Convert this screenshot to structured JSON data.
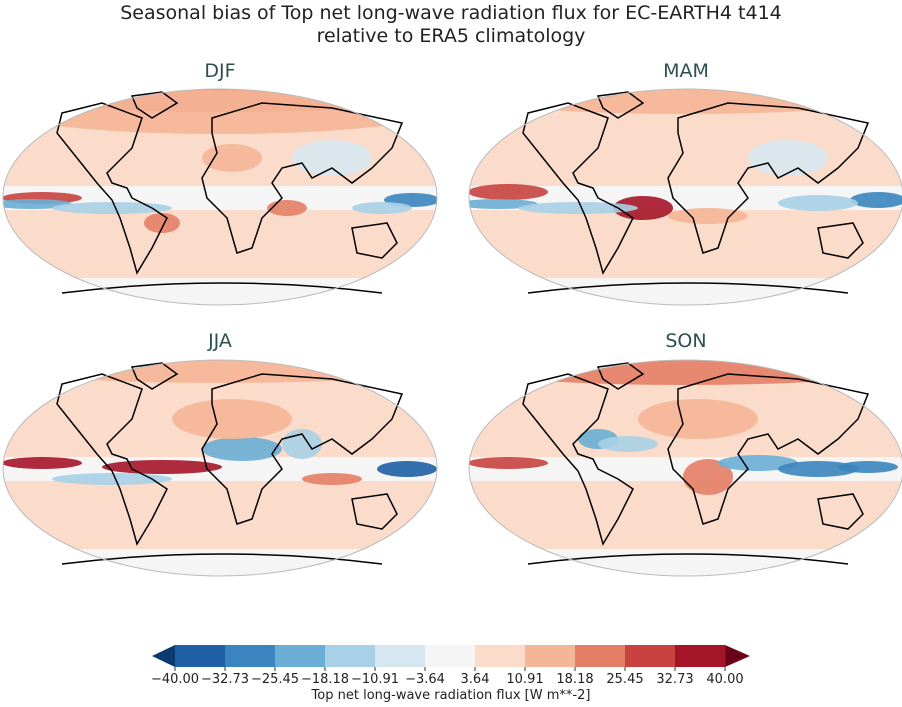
{
  "title": {
    "line1": "Seasonal bias of Top net long-wave radiation flux for EC-EARTH4 t414",
    "line2": "relative to ERA5 climatology"
  },
  "panels": [
    {
      "label": "DJF"
    },
    {
      "label": "MAM"
    },
    {
      "label": "JJA"
    },
    {
      "label": "SON"
    }
  ],
  "colorbar": {
    "label": "Top net long-wave radiation flux [W m**-2]",
    "ticks": [
      "−40.00",
      "−32.73",
      "−25.45",
      "−18.18",
      "−10.91",
      "−3.64",
      "3.64",
      "10.91",
      "18.18",
      "25.45",
      "32.73",
      "40.00"
    ],
    "range": [
      -40,
      40
    ],
    "colors": [
      "#1f5fa5",
      "#3a85bf",
      "#6aaed5",
      "#a8d0e6",
      "#d7e7f1",
      "#f5f5f5",
      "#fbdccb",
      "#f5b597",
      "#e47e66",
      "#c8433f",
      "#a51528"
    ],
    "under_color": "#0b3a6e",
    "over_color": "#6b0119"
  }
}
